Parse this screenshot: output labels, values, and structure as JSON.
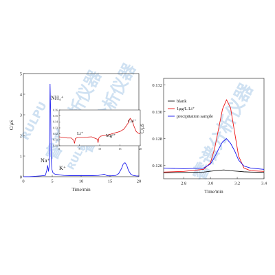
{
  "watermark": {
    "brand_latin": "RULPU",
    "brand_latin_2": "RULPU",
    "brand_chinese": "睿谱分析仪器",
    "brand_chinese_2": "睿谱分析仪器",
    "brand_chinese_3": "睿谱分析仪器",
    "color": "#cfe1f2"
  },
  "chart_data": [
    {
      "type": "line",
      "panel": "left-main",
      "xlabel": "Time/min",
      "ylabel": "C/μS",
      "xlim": [
        0,
        20
      ],
      "ylim": [
        0,
        5
      ],
      "xticks": [
        "0",
        "5",
        "10",
        "15",
        "20"
      ],
      "yticks": [
        "0",
        "1",
        "2",
        "3",
        "4",
        "5"
      ],
      "series": [
        {
          "color": "#2121ee",
          "x": [
            0,
            1,
            2,
            3,
            3.8,
            4.05,
            4.2,
            4.35,
            4.5,
            4.62,
            4.72,
            4.82,
            4.95,
            5.1,
            5.3,
            5.5,
            6.0,
            7,
            8,
            9,
            10,
            11,
            12,
            13,
            14,
            14.5,
            15,
            16,
            16.5,
            17,
            17.3,
            17.6,
            17.9,
            18.2,
            18.6,
            19,
            19.5,
            20
          ],
          "y": [
            0.0,
            0.0,
            0.02,
            0.04,
            0.06,
            0.3,
            0.55,
            0.25,
            0.6,
            4.5,
            3.2,
            0.8,
            0.35,
            0.2,
            0.15,
            0.12,
            0.1,
            0.06,
            0.05,
            0.05,
            0.05,
            0.05,
            0.05,
            0.06,
            0.12,
            0.05,
            0.04,
            0.06,
            0.15,
            0.4,
            0.62,
            0.68,
            0.55,
            0.3,
            0.12,
            0.06,
            0.04,
            0.03
          ]
        }
      ],
      "annotations": [
        "Na⁺",
        "NH₄⁺",
        "K⁺"
      ]
    },
    {
      "type": "line",
      "panel": "left-inset",
      "xlim": [
        0,
        20
      ],
      "ylim": [
        0.1,
        0.16
      ],
      "xticks": [
        "0",
        "5",
        "10",
        "15",
        "20"
      ],
      "yticks": [
        "0.10",
        "0.11",
        "0.12",
        "0.13",
        "0.14",
        "0.15",
        "0.16"
      ],
      "series": [
        {
          "color": "#dd1111",
          "x": [
            0,
            1,
            2,
            3,
            3.6,
            3.8,
            4.0,
            4.5,
            6,
            8,
            9.4,
            9.6,
            9.8,
            10.2,
            11,
            12,
            13,
            14,
            15,
            16,
            17,
            17.5,
            18,
            18.5,
            19,
            19.5,
            20
          ],
          "y": [
            0.115,
            0.114,
            0.113,
            0.113,
            0.109,
            0.104,
            0.112,
            0.114,
            0.114,
            0.115,
            0.111,
            0.105,
            0.113,
            0.116,
            0.117,
            0.118,
            0.12,
            0.122,
            0.124,
            0.128,
            0.138,
            0.146,
            0.142,
            0.132,
            0.124,
            0.121,
            0.12
          ]
        }
      ],
      "annotations": [
        "Li⁺",
        "Mg²⁺",
        "Ca²⁺"
      ]
    },
    {
      "type": "line",
      "panel": "right",
      "xlabel": "Time/min",
      "ylabel": "C/μS",
      "xlim": [
        2.65,
        3.4
      ],
      "ylim": [
        0.125,
        0.1325
      ],
      "xticks": [
        "2.8",
        "3.0",
        "3.2",
        "3.4"
      ],
      "yticks": [
        "0.126",
        "0.128",
        "0.130",
        "0.132"
      ],
      "legend": {
        "placement": "top-left"
      },
      "series": [
        {
          "name": "blank",
          "color": "#111111",
          "x": [
            2.65,
            2.8,
            2.95,
            3.0,
            3.05,
            3.1,
            3.15,
            3.2,
            3.25,
            3.3,
            3.4
          ],
          "y": [
            0.12545,
            0.12547,
            0.1255,
            0.12556,
            0.12562,
            0.12566,
            0.1256,
            0.12556,
            0.12552,
            0.1255,
            0.12548
          ]
        },
        {
          "name": "1μg/L Li⁺",
          "color": "#ee1111",
          "x": [
            2.65,
            2.8,
            2.95,
            3.0,
            3.03,
            3.06,
            3.09,
            3.12,
            3.15,
            3.18,
            3.21,
            3.25,
            3.3,
            3.4
          ],
          "y": [
            0.1255,
            0.12555,
            0.1257,
            0.1262,
            0.1272,
            0.1287,
            0.1302,
            0.1309,
            0.1303,
            0.1285,
            0.1267,
            0.1258,
            0.1256,
            0.12555
          ]
        },
        {
          "name": "precipitation sample",
          "color": "#1111ee",
          "x": [
            2.65,
            2.8,
            2.95,
            3.0,
            3.03,
            3.06,
            3.09,
            3.12,
            3.15,
            3.18,
            3.21,
            3.25,
            3.3,
            3.4
          ],
          "y": [
            0.1258,
            0.12575,
            0.1258,
            0.1261,
            0.1266,
            0.1272,
            0.12775,
            0.128,
            0.12765,
            0.1271,
            0.1264,
            0.12595,
            0.1258,
            0.1257
          ]
        }
      ]
    }
  ]
}
